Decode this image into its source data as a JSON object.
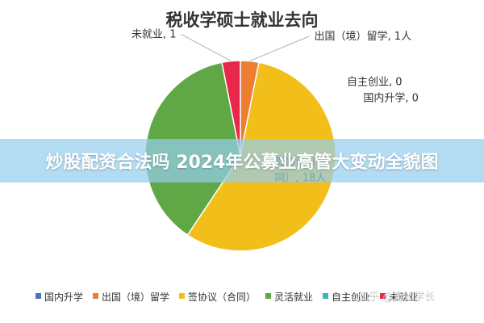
{
  "banner": {
    "text": "炒股配资合法吗 2024年公募业高管大变动全貌图"
  },
  "watermark": {
    "text": "知乎 @青蛙学长"
  },
  "chart_data": {
    "type": "pie",
    "title": "税收学硕士就业去向",
    "legend_position": "bottom",
    "slices": [
      {
        "name": "国内升学",
        "value": 0,
        "color": "#4a72c4",
        "label": "国内升学, 0"
      },
      {
        "name": "出国（境）留学",
        "value": 1,
        "color": "#ed7d31",
        "label": "出国（境）留学, 1人"
      },
      {
        "name": "签协议（合同）",
        "value": 18,
        "color": "#f2be1a",
        "label": "签协议（合\n同）, 18人"
      },
      {
        "name": "灵活就业",
        "value": 12,
        "color": "#5fa845",
        "label": ""
      },
      {
        "name": "自主创业",
        "value": 0,
        "color": "#3cb4b4",
        "label": "自主创业, 0"
      },
      {
        "name": "未就业",
        "value": 1,
        "color": "#e8274a",
        "label": "未就业, 1"
      }
    ]
  }
}
